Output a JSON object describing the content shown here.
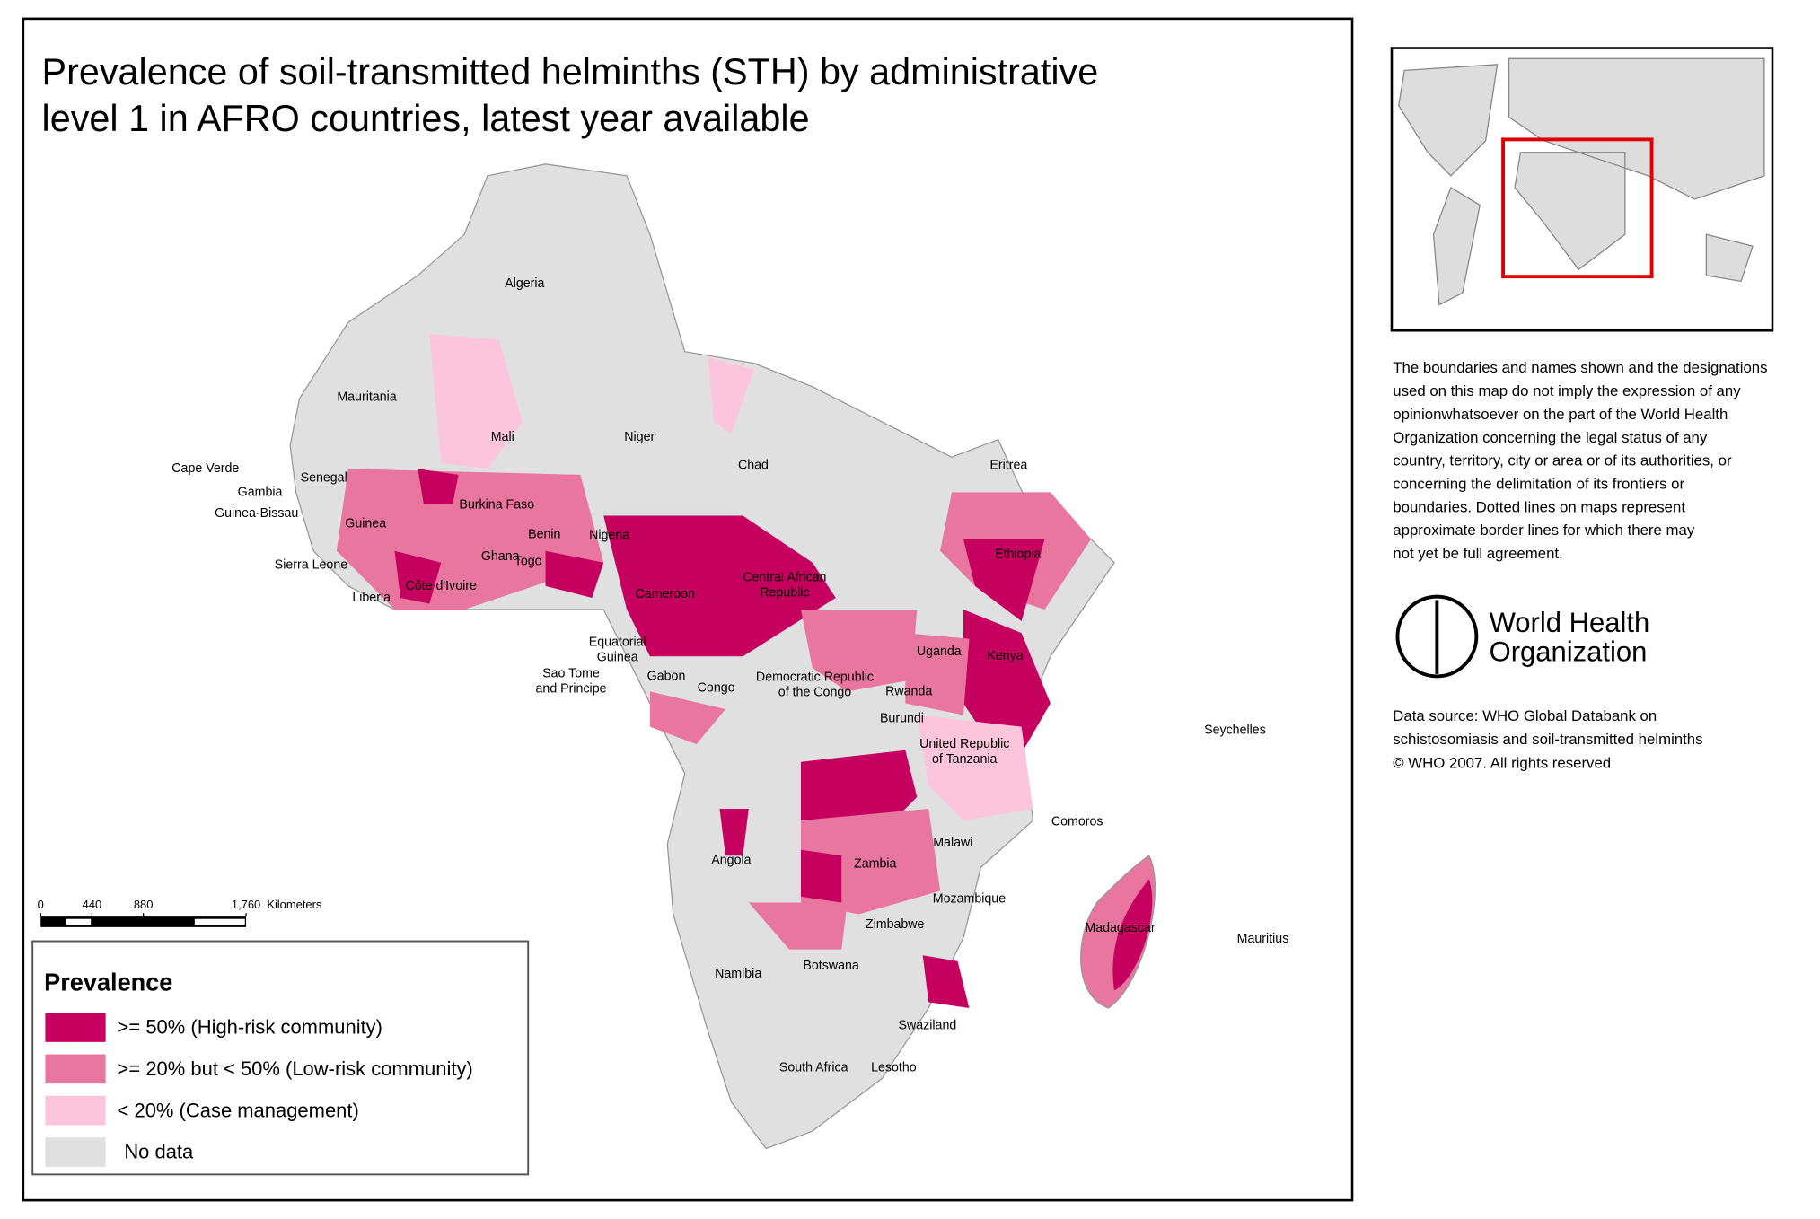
{
  "title": [
    "Prevalence of soil-transmitted helminths (STH) by administrative",
    "level 1 in AFRO countries, latest year available"
  ],
  "countries": [
    [
      "Algeria"
    ],
    [
      "Mauritania"
    ],
    [
      "Mali"
    ],
    [
      "Niger"
    ],
    [
      "Chad"
    ],
    [
      "Eritrea"
    ],
    [
      "Cape Verde"
    ],
    [
      "Senegal"
    ],
    [
      "Gambia"
    ],
    [
      "Guinea-Bissau"
    ],
    [
      "Guinea"
    ],
    [
      "Burkina Faso"
    ],
    [
      "Benin"
    ],
    [
      "Nigeria"
    ],
    [
      "Ghana"
    ],
    [
      "Togo"
    ],
    [
      "Sierra Leone"
    ],
    [
      "Côte d'Ivoire"
    ],
    [
      "Liberia"
    ],
    [
      "Cameroon"
    ],
    [
      "Central African",
      "Republic"
    ],
    [
      "Ethiopia"
    ],
    [
      "Equatorial",
      "Guinea"
    ],
    [
      "Sao Tome",
      "and Principe"
    ],
    [
      "Gabon"
    ],
    [
      "Congo"
    ],
    [
      "Democratic Republic",
      "of the Congo"
    ],
    [
      "Uganda"
    ],
    [
      "Kenya"
    ],
    [
      "Rwanda"
    ],
    [
      "Burundi"
    ],
    [
      "United Republic",
      "of Tanzania"
    ],
    [
      "Seychelles"
    ],
    [
      "Comoros"
    ],
    [
      "Malawi"
    ],
    [
      "Angola"
    ],
    [
      "Zambia"
    ],
    [
      "Mozambique"
    ],
    [
      "Zimbabwe"
    ],
    [
      "Madagascar"
    ],
    [
      "Mauritius"
    ],
    [
      "Namibia"
    ],
    [
      "Botswana"
    ],
    [
      "Swaziland"
    ],
    [
      "South Africa"
    ],
    [
      "Lesotho"
    ]
  ],
  "scale_bar": {
    "ticks": [
      0,
      440,
      880,
      {
        "value": 1760,
        "label": "1,760"
      }
    ],
    "unit": "Kilometers"
  },
  "legend": {
    "title": "Prevalence",
    "items": [
      {
        "label": ">= 50% (High-risk community)",
        "color": "#c6005e"
      },
      {
        "label": ">= 20% but < 50% (Low-risk community)",
        "color": "#e8769f"
      },
      {
        "label": "< 20% (Case management)",
        "color": "#fcc5dc"
      },
      {
        "label": "No data",
        "color": "#e0e0e0"
      }
    ]
  },
  "disclaimer": [
    "The boundaries and names shown and the designations",
    "used on this map do not imply the expression of any",
    "opinionwhatsoever on the part of the World Health",
    "Organization concerning the legal  status of any",
    "country, territory, city or area or of its authorities, or",
    "concerning the delimitation of its frontiers or",
    "boundaries.  Dotted lines on maps represent",
    "approximate border lines for which there may",
    "not yet be full agreement."
  ],
  "logo": [
    "World Health",
    "Organization"
  ],
  "source": [
    "Data source: WHO Global Databank on",
    "schistosomiasis and soil-transmitted helminths",
    " © WHO 2007. All rights reserved"
  ]
}
